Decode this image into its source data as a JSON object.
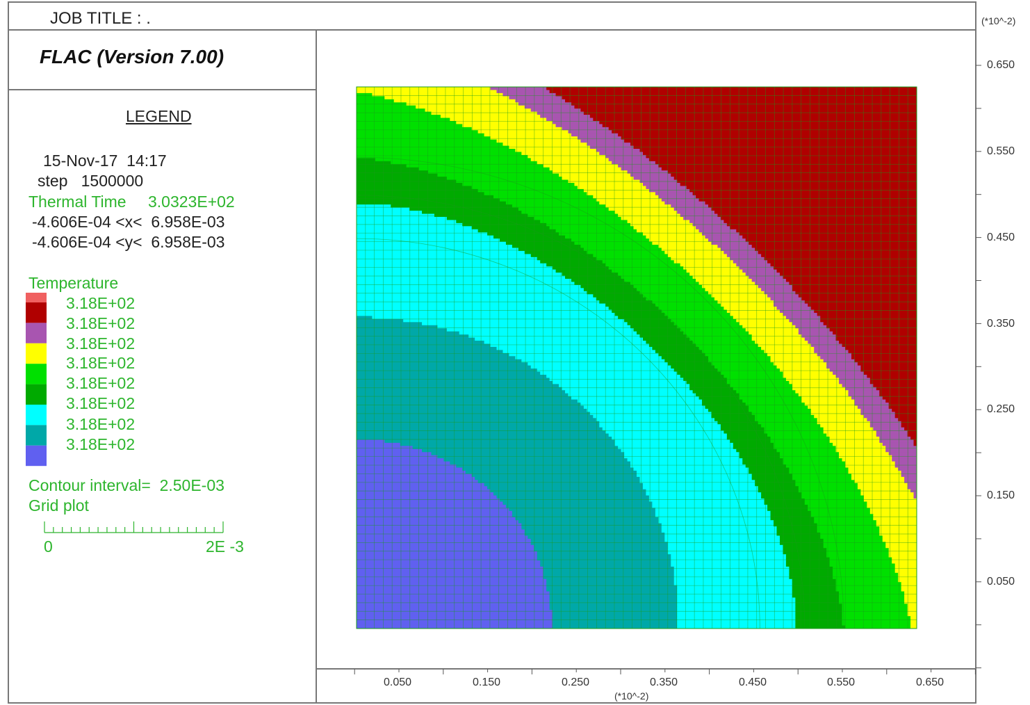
{
  "header": {
    "job_title": "JOB TITLE : .",
    "program": "FLAC (Version 7.00)"
  },
  "legend": {
    "heading": "LEGEND",
    "date_line": "15-Nov-17  14:17",
    "step_line": "step   1500000",
    "thermal_time_label": "Thermal Time",
    "thermal_time_value": "3.0323E+02",
    "x_range": "-4.606E-04 <x<  6.958E-03",
    "y_range": "-4.606E-04 <y<  6.958E-03",
    "variable": "Temperature",
    "levels": [
      {
        "label": "3.18E+02",
        "color": "#b00000"
      },
      {
        "label": "3.18E+02",
        "color": "#a855b0"
      },
      {
        "label": "3.18E+02",
        "color": "#ffff00"
      },
      {
        "label": "3.18E+02",
        "color": "#00e000"
      },
      {
        "label": "3.18E+02",
        "color": "#00aa00"
      },
      {
        "label": "3.18E+02",
        "color": "#00ffff"
      },
      {
        "label": "3.18E+02",
        "color": "#00a8a8"
      },
      {
        "label": "3.18E+02",
        "color": "#6060f0"
      }
    ],
    "top_swatch_color": "#f06060",
    "contour_interval": "Contour interval=  2.50E-03",
    "grid_plot": "Grid plot",
    "scale_start": "0",
    "scale_end": "2E -3"
  },
  "chart_data": {
    "type": "heatmap",
    "title": "",
    "variable": "Temperature",
    "x_unit_label": "(*10^-2)",
    "y_unit_label": "(*10^-2)",
    "x_ticks": [
      "0.050",
      "0.150",
      "0.250",
      "0.350",
      "0.450",
      "0.550",
      "0.650"
    ],
    "y_ticks": [
      "0.650",
      "0.550",
      "0.450",
      "0.350",
      "0.250",
      "0.150",
      "0.050"
    ],
    "xlim": [
      -0.04606,
      0.6958
    ],
    "ylim": [
      -0.04606,
      0.6958
    ],
    "domain": {
      "x": [
        0.0,
        0.63
      ],
      "y": [
        0.0,
        0.61
      ]
    },
    "contour_bands": [
      {
        "index": 0,
        "color": "#6060f0"
      },
      {
        "index": 1,
        "color": "#00a8a8"
      },
      {
        "index": 2,
        "color": "#00ffff"
      },
      {
        "index": 3,
        "color": "#00aa00"
      },
      {
        "index": 4,
        "color": "#00e000"
      },
      {
        "index": 5,
        "color": "#ffff00"
      },
      {
        "index": 6,
        "color": "#a855b0"
      },
      {
        "index": 7,
        "color": "#b00000"
      }
    ],
    "grid": true
  }
}
